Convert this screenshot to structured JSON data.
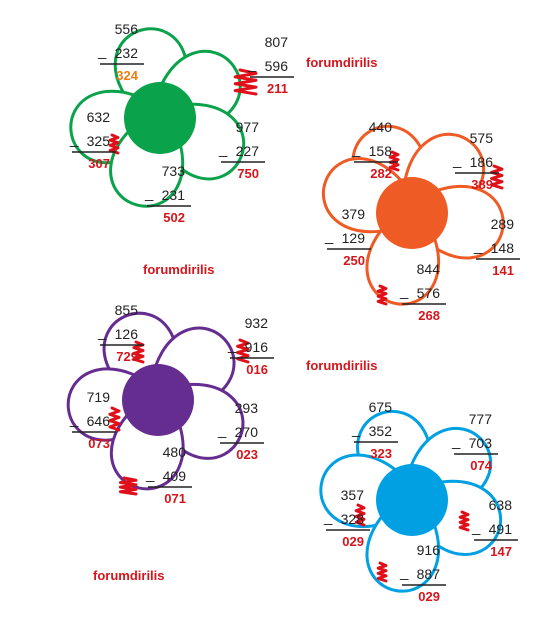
{
  "watermarks": [
    "forumdirilis",
    "forumdirilis",
    "forumdirilis",
    "forumdirilis"
  ],
  "colors": {
    "result": "#d4161c",
    "result_alt": "#ee7d14",
    "scribble": "#e0101a",
    "text": "#222222"
  },
  "flowers": [
    {
      "color": "#0aa24a",
      "problems": [
        {
          "minuend": "556",
          "subtrahend": "232",
          "result": "324",
          "result_color": "orange"
        },
        {
          "minuend": "807",
          "subtrahend": "596",
          "result": "211"
        },
        {
          "minuend": "632",
          "subtrahend": "325",
          "result": "307"
        },
        {
          "minuend": "977",
          "subtrahend": "227",
          "result": "750"
        },
        {
          "minuend": "733",
          "subtrahend": "231",
          "result": "502"
        }
      ]
    },
    {
      "color": "#ef5b25",
      "problems": [
        {
          "minuend": "440",
          "subtrahend": "158",
          "result": "282"
        },
        {
          "minuend": "575",
          "subtrahend": "186",
          "result": "389"
        },
        {
          "minuend": "379",
          "subtrahend": "129",
          "result": "250"
        },
        {
          "minuend": "289",
          "subtrahend": "148",
          "result": "141"
        },
        {
          "minuend": "844",
          "subtrahend": "576",
          "result": "268"
        }
      ]
    },
    {
      "color": "#662d91",
      "problems": [
        {
          "minuend": "855",
          "subtrahend": "126",
          "result": "729"
        },
        {
          "minuend": "932",
          "subtrahend": "916",
          "result": "016"
        },
        {
          "minuend": "719",
          "subtrahend": "646",
          "result": "073"
        },
        {
          "minuend": "293",
          "subtrahend": "270",
          "result": "023"
        },
        {
          "minuend": "480",
          "subtrahend": "409",
          "result": "071"
        }
      ]
    },
    {
      "color": "#00a0e3",
      "problems": [
        {
          "minuend": "675",
          "subtrahend": "352",
          "result": "323"
        },
        {
          "minuend": "777",
          "subtrahend": "703",
          "result": "074"
        },
        {
          "minuend": "357",
          "subtrahend": "328",
          "result": "029"
        },
        {
          "minuend": "638",
          "subtrahend": "491",
          "result": "147"
        },
        {
          "minuend": "916",
          "subtrahend": "887",
          "result": "029"
        }
      ]
    }
  ]
}
